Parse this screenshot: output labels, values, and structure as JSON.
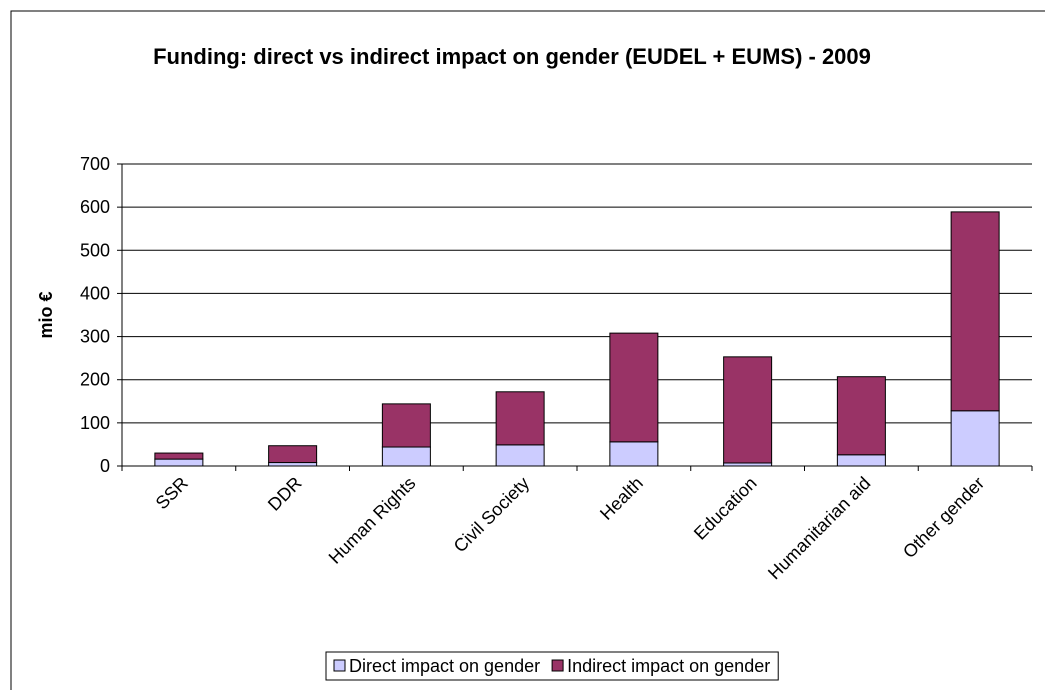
{
  "chart_data": {
    "type": "stacked_bar",
    "title": "Funding: direct vs indirect impact on gender (EUDEL + EUMS) - 2009",
    "y_label": "mio €",
    "categories": [
      "SSR",
      "DDR",
      "Human Rights",
      "Civil Society",
      "Health",
      "Education",
      "Humanitarian aid",
      "Other gender"
    ],
    "series": [
      {
        "name": "Direct impact on gender",
        "color": "#ccccff",
        "values": [
          16,
          8,
          44,
          49,
          56,
          7,
          26,
          128
        ]
      },
      {
        "name": "Indirect impact on gender",
        "color": "#993366",
        "values": [
          14,
          39,
          100,
          123,
          252,
          246,
          181,
          461
        ]
      }
    ],
    "ylim": [
      0,
      700
    ],
    "yticks": [
      0,
      100,
      200,
      300,
      400,
      500,
      600,
      700
    ],
    "grid": true,
    "legend": "bottom"
  }
}
